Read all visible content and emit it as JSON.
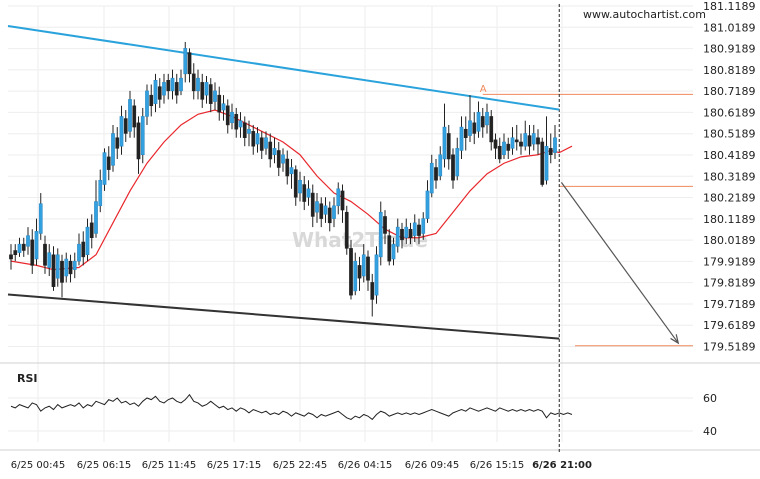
{
  "chart_data": {
    "type": "candlestick",
    "source_watermark": "www.autochartist.com",
    "brand_watermark": "What2Trade",
    "price_axis": {
      "ticks": [
        "181.1189",
        "181.0189",
        "180.9189",
        "180.8189",
        "180.7189",
        "180.6189",
        "180.5189",
        "180.4189",
        "180.3189",
        "180.2189",
        "180.1189",
        "180.0189",
        "179.9189",
        "179.8189",
        "179.7189",
        "179.6189",
        "179.5189"
      ],
      "range": [
        179.4889,
        181.1189
      ]
    },
    "time_axis": {
      "labels": [
        "6/25 00:45",
        "6/25 06:15",
        "6/25 11:45",
        "6/25 17:15",
        "6/25 22:45",
        "6/26 04:15",
        "6/26 09:45",
        "6/26 15:15",
        "6/26 21:00"
      ],
      "bold_label": "6/26 21:00",
      "slots": 133
    },
    "pattern": {
      "resistance_line": {
        "start": [
          0,
          181.025
        ],
        "end": [
          129,
          180.632
        ]
      },
      "support_line": {
        "start": [
          0,
          179.763
        ],
        "end": [
          129,
          179.556
        ]
      },
      "point_a_label": "A",
      "point_a": [
        111,
        180.7
      ],
      "level_high": 180.7035,
      "level_low": 180.2715,
      "target_level": 179.5225,
      "forecast_arrow": {
        "start": [
          129.5,
          180.29
        ],
        "end": [
          157,
          179.535
        ]
      },
      "current_time_slot": 129
    },
    "candles": [
      [
        179.95,
        179.93,
        180.0,
        179.88
      ],
      [
        179.97,
        179.95,
        180.0,
        179.92
      ],
      [
        179.96,
        180.0,
        180.03,
        179.94
      ],
      [
        180.0,
        179.97,
        180.03,
        179.94
      ],
      [
        179.99,
        180.04,
        180.08,
        179.95
      ],
      [
        180.02,
        179.9,
        180.07,
        179.86
      ],
      [
        179.93,
        180.06,
        180.12,
        179.9
      ],
      [
        180.05,
        180.19,
        180.24,
        180.02
      ],
      [
        180.0,
        179.9,
        180.04,
        179.86
      ],
      [
        179.89,
        179.96,
        180.0,
        179.85
      ],
      [
        179.95,
        179.8,
        179.99,
        179.78
      ],
      [
        179.84,
        179.95,
        179.98,
        179.8
      ],
      [
        179.92,
        179.82,
        179.95,
        179.75
      ],
      [
        179.85,
        179.93,
        179.96,
        179.82
      ],
      [
        179.92,
        179.86,
        179.95,
        179.82
      ],
      [
        179.88,
        179.92,
        179.96,
        179.84
      ],
      [
        179.92,
        180.0,
        180.05,
        179.9
      ],
      [
        180.01,
        179.94,
        180.06,
        179.9
      ],
      [
        179.95,
        180.08,
        180.12,
        179.92
      ],
      [
        180.1,
        180.03,
        180.14,
        179.98
      ],
      [
        180.05,
        180.2,
        180.3,
        180.03
      ],
      [
        180.18,
        180.3,
        180.35,
        180.15
      ],
      [
        180.28,
        180.43,
        180.45,
        180.25
      ],
      [
        180.41,
        180.35,
        180.46,
        180.3
      ],
      [
        180.37,
        180.52,
        180.56,
        180.34
      ],
      [
        180.5,
        180.45,
        180.55,
        180.4
      ],
      [
        180.46,
        180.6,
        180.65,
        180.42
      ],
      [
        180.59,
        180.52,
        180.63,
        180.48
      ],
      [
        180.53,
        180.68,
        180.72,
        180.5
      ],
      [
        180.65,
        180.55,
        180.68,
        180.5
      ],
      [
        180.57,
        180.4,
        180.6,
        180.33
      ],
      [
        180.42,
        180.6,
        180.64,
        180.38
      ],
      [
        180.6,
        180.72,
        180.75,
        180.56
      ],
      [
        180.7,
        180.65,
        180.75,
        180.6
      ],
      [
        180.66,
        180.77,
        180.8,
        180.62
      ],
      [
        180.74,
        180.68,
        180.78,
        180.64
      ],
      [
        180.7,
        180.76,
        180.8,
        180.66
      ],
      [
        180.77,
        180.72,
        180.8,
        180.68
      ],
      [
        180.72,
        180.78,
        180.82,
        180.68
      ],
      [
        180.76,
        180.7,
        180.8,
        180.66
      ],
      [
        180.72,
        180.78,
        180.82,
        180.7
      ],
      [
        180.8,
        180.92,
        180.95,
        180.76
      ],
      [
        180.9,
        180.8,
        180.92,
        180.76
      ],
      [
        180.8,
        180.72,
        180.85,
        180.68
      ],
      [
        180.72,
        180.78,
        180.82,
        180.68
      ],
      [
        180.76,
        180.68,
        180.8,
        180.64
      ],
      [
        180.7,
        180.76,
        180.79,
        180.66
      ],
      [
        180.75,
        180.66,
        180.78,
        180.62
      ],
      [
        180.67,
        180.72,
        180.76,
        180.63
      ],
      [
        180.7,
        180.62,
        180.74,
        180.58
      ],
      [
        180.63,
        180.66,
        180.7,
        180.58
      ],
      [
        180.65,
        180.56,
        180.68,
        180.52
      ],
      [
        180.57,
        180.62,
        180.66,
        180.54
      ],
      [
        180.61,
        180.54,
        180.64,
        180.5
      ],
      [
        180.55,
        180.58,
        180.62,
        180.5
      ],
      [
        180.57,
        180.5,
        180.6,
        180.46
      ],
      [
        180.52,
        180.54,
        180.58,
        180.46
      ],
      [
        180.53,
        180.46,
        180.56,
        180.42
      ],
      [
        180.47,
        180.52,
        180.55,
        180.43
      ],
      [
        180.5,
        180.44,
        180.53,
        180.4
      ],
      [
        180.45,
        180.5,
        180.53,
        180.42
      ],
      [
        180.48,
        180.4,
        180.52,
        180.36
      ],
      [
        180.42,
        180.45,
        180.5,
        180.38
      ],
      [
        180.44,
        180.36,
        180.48,
        180.32
      ],
      [
        180.38,
        180.42,
        180.45,
        180.34
      ],
      [
        180.4,
        180.32,
        180.44,
        180.28
      ],
      [
        180.33,
        180.36,
        180.4,
        180.26
      ],
      [
        180.35,
        180.22,
        180.37,
        180.18
      ],
      [
        180.24,
        180.3,
        180.34,
        180.2
      ],
      [
        180.28,
        180.2,
        180.32,
        180.16
      ],
      [
        180.22,
        180.26,
        180.3,
        180.18
      ],
      [
        180.24,
        180.13,
        180.28,
        180.08
      ],
      [
        180.15,
        180.2,
        180.24,
        180.1
      ],
      [
        180.19,
        180.12,
        180.22,
        180.08
      ],
      [
        180.14,
        180.18,
        180.22,
        180.1
      ],
      [
        180.17,
        180.1,
        180.2,
        180.06
      ],
      [
        180.12,
        180.18,
        180.22,
        180.08
      ],
      [
        180.18,
        180.26,
        180.29,
        180.14
      ],
      [
        180.25,
        180.16,
        180.28,
        180.1
      ],
      [
        180.15,
        179.98,
        180.18,
        179.95
      ],
      [
        179.98,
        179.76,
        180.02,
        179.74
      ],
      [
        179.78,
        179.92,
        179.96,
        179.76
      ],
      [
        179.9,
        179.84,
        179.94,
        179.78
      ],
      [
        179.85,
        179.95,
        180.0,
        179.82
      ],
      [
        179.94,
        179.83,
        179.97,
        179.78
      ],
      [
        179.82,
        179.74,
        179.86,
        179.66
      ],
      [
        179.76,
        179.95,
        179.99,
        179.72
      ],
      [
        179.94,
        180.15,
        180.2,
        179.9
      ],
      [
        180.13,
        180.05,
        180.16,
        180.0
      ],
      [
        180.04,
        179.92,
        180.07,
        179.9
      ],
      [
        179.93,
        180.0,
        180.03,
        179.9
      ],
      [
        179.99,
        180.08,
        180.12,
        179.96
      ],
      [
        180.07,
        180.02,
        180.1,
        179.98
      ],
      [
        180.03,
        180.08,
        180.12,
        180.0
      ],
      [
        180.07,
        180.03,
        180.1,
        180.0
      ],
      [
        180.04,
        180.1,
        180.14,
        180.01
      ],
      [
        180.09,
        180.04,
        180.12,
        180.0
      ],
      [
        180.05,
        180.12,
        180.15,
        180.02
      ],
      [
        180.12,
        180.25,
        180.3,
        180.1
      ],
      [
        180.24,
        180.38,
        180.42,
        180.22
      ],
      [
        180.36,
        180.3,
        180.4,
        180.26
      ],
      [
        180.32,
        180.42,
        180.46,
        180.3
      ],
      [
        180.4,
        180.55,
        180.66,
        180.36
      ],
      [
        180.52,
        180.4,
        180.56,
        180.35
      ],
      [
        180.42,
        180.3,
        180.45,
        180.26
      ],
      [
        180.32,
        180.45,
        180.5,
        180.3
      ],
      [
        180.44,
        180.55,
        180.6,
        180.4
      ],
      [
        180.54,
        180.5,
        180.6,
        180.44
      ],
      [
        180.51,
        180.58,
        180.7,
        180.48
      ],
      [
        180.57,
        180.52,
        180.62,
        180.47
      ],
      [
        180.53,
        180.62,
        180.67,
        180.5
      ],
      [
        180.6,
        180.55,
        180.64,
        180.5
      ],
      [
        180.56,
        180.62,
        180.66,
        180.52
      ],
      [
        180.6,
        180.48,
        180.63,
        180.44
      ],
      [
        180.49,
        180.45,
        180.52,
        180.4
      ],
      [
        180.46,
        180.4,
        180.5,
        180.38
      ],
      [
        180.42,
        180.48,
        180.52,
        180.4
      ],
      [
        180.47,
        180.44,
        180.5,
        180.4
      ],
      [
        180.45,
        180.5,
        180.55,
        180.42
      ],
      [
        180.49,
        180.48,
        180.56,
        180.44
      ],
      [
        180.48,
        180.46,
        180.52,
        180.42
      ],
      [
        180.46,
        180.52,
        180.58,
        180.44
      ],
      [
        180.51,
        180.46,
        180.56,
        180.42
      ],
      [
        180.47,
        180.52,
        180.56,
        180.44
      ],
      [
        180.5,
        180.47,
        180.54,
        180.42
      ],
      [
        180.48,
        180.28,
        180.5,
        180.27
      ],
      [
        180.3,
        180.46,
        180.6,
        180.28
      ],
      [
        180.45,
        180.42,
        180.52,
        180.38
      ],
      [
        180.43,
        180.5,
        180.56,
        180.4
      ]
    ],
    "moving_average": [
      [
        0,
        179.92
      ],
      [
        6,
        179.9
      ],
      [
        10,
        179.88
      ],
      [
        16,
        179.89
      ],
      [
        20,
        179.95
      ],
      [
        24,
        180.1
      ],
      [
        28,
        180.25
      ],
      [
        32,
        180.38
      ],
      [
        36,
        180.48
      ],
      [
        40,
        180.56
      ],
      [
        44,
        180.61
      ],
      [
        48,
        180.63
      ],
      [
        52,
        180.6
      ],
      [
        56,
        180.56
      ],
      [
        60,
        180.52
      ],
      [
        64,
        180.48
      ],
      [
        68,
        180.42
      ],
      [
        72,
        180.32
      ],
      [
        76,
        180.24
      ],
      [
        80,
        180.2
      ],
      [
        84,
        180.14
      ],
      [
        88,
        180.07
      ],
      [
        92,
        180.03
      ],
      [
        96,
        180.03
      ],
      [
        100,
        180.05
      ],
      [
        104,
        180.15
      ],
      [
        108,
        180.25
      ],
      [
        112,
        180.33
      ],
      [
        116,
        180.38
      ],
      [
        120,
        180.41
      ],
      [
        124,
        180.42
      ],
      [
        127,
        180.44
      ],
      [
        129,
        180.43
      ],
      [
        132,
        180.46
      ]
    ],
    "rsi": {
      "label": "RSI",
      "ticks": [
        "60",
        "40"
      ],
      "range": [
        25,
        75
      ],
      "values": [
        55,
        54,
        56,
        55,
        54,
        57,
        56,
        52,
        54,
        55,
        53,
        56,
        54,
        55,
        56,
        55,
        57,
        54,
        56,
        55,
        58,
        57,
        56,
        59,
        58,
        60,
        57,
        58,
        56,
        57,
        55,
        58,
        60,
        59,
        61,
        58,
        57,
        59,
        60,
        58,
        57,
        59,
        62,
        58,
        57,
        55,
        56,
        58,
        56,
        54,
        55,
        53,
        54,
        52,
        54,
        53,
        51,
        53,
        52,
        51,
        52,
        50,
        51,
        50,
        52,
        51,
        49,
        51,
        50,
        49,
        51,
        50,
        48,
        50,
        49,
        50,
        51,
        52,
        50,
        48,
        47,
        49,
        48,
        50,
        49,
        47,
        50,
        52,
        51,
        49,
        50,
        51,
        50,
        51,
        50,
        51,
        50,
        51,
        52,
        53,
        52,
        51,
        50,
        49,
        51,
        52,
        53,
        52,
        54,
        53,
        52,
        53,
        54,
        53,
        52,
        54,
        53,
        52,
        53,
        52,
        53,
        52,
        53,
        52,
        53,
        52,
        48,
        51,
        50,
        51,
        50,
        51,
        50
      ]
    }
  }
}
